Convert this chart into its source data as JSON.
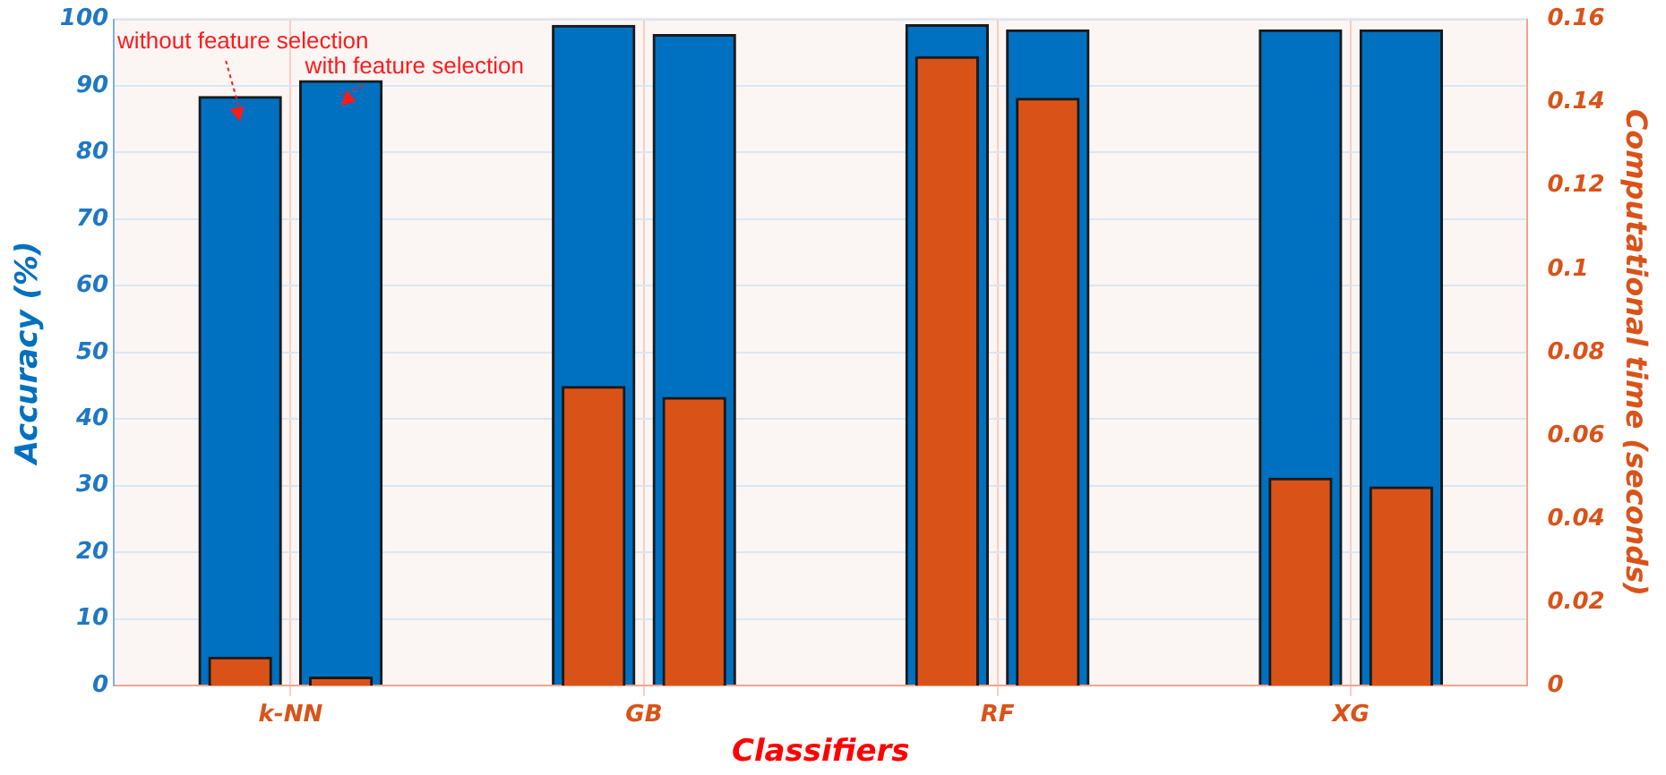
{
  "chart_data": {
    "type": "bar",
    "xlabel": "Classifiers",
    "ylabel": "Accuracy (%)",
    "y2label": "Computational time (seconds)",
    "categories": [
      "k-NN",
      "GB",
      "RF",
      "XG"
    ],
    "series": [
      {
        "color": "#0070c0",
        "values": [
          88.4,
          99.1,
          99.2,
          98.4
        ]
      },
      {
        "color": "#0070c0",
        "values": [
          90.8,
          97.7,
          98.4,
          98.4
        ]
      },
      {
        "color": "#d95319",
        "axis": "y2",
        "values": [
          0.0068,
          0.0718,
          0.151,
          0.0498
        ]
      },
      {
        "color": "#d95319",
        "axis": "y2",
        "values": [
          0.002,
          0.0692,
          0.141,
          0.0477
        ]
      }
    ],
    "ylim": [
      0,
      100
    ],
    "yticks": [
      0,
      10,
      20,
      30,
      40,
      50,
      60,
      70,
      80,
      90,
      100
    ],
    "y2lim": [
      0,
      0.16
    ],
    "y2ticks": [
      0,
      0.02,
      0.04,
      0.06,
      0.08,
      0.1,
      0.12,
      0.14,
      0.16
    ],
    "grid": true,
    "legend": false,
    "annotations": [
      "without feature selection",
      "with feature selection"
    ]
  }
}
